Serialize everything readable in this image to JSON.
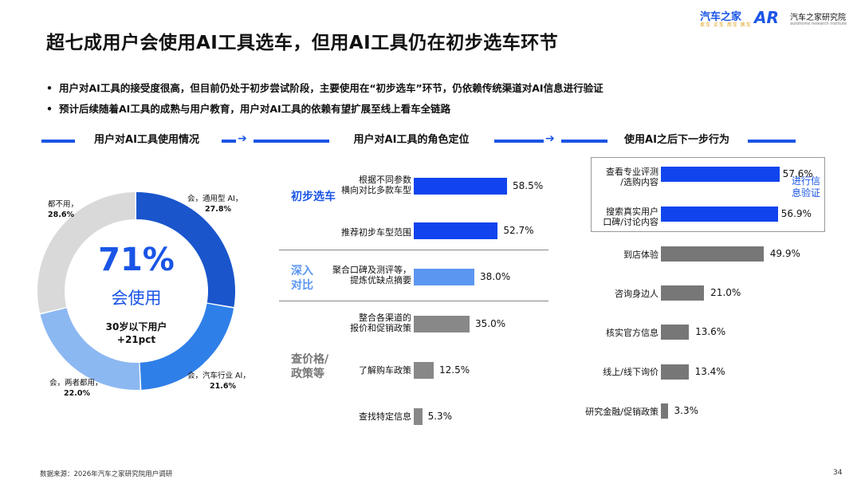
{
  "header": {
    "title": "超七成用户会使用AI工具选车，但用AI工具仍在初步选车环节",
    "logo_main": "汽车之家",
    "logo_main_sub": "卖车 买车 用车 换车",
    "logo_inst_mark": "AR",
    "logo_inst_name": "汽车之家研究院",
    "logo_inst_sub": "autohome research institute"
  },
  "bullets": [
    "用户对AI工具的接受度很高，但目前仍处于初步尝试阶段，主要使用在“初步选车”环节，仍依赖传统渠道对AI信息进行验证",
    "预计后续随着AI工具的成熟与用户教育，用户对AI工具的依赖有望扩展至线上看车全链路"
  ],
  "sections": {
    "left": "用户对AI工具使用情况",
    "middle": "用户对AI工具的角色定位",
    "right": "使用AI之后下一步行为"
  },
  "donut": {
    "big": "71%",
    "med": "会使用",
    "small1": "30岁以下用户",
    "small2": "+21pct",
    "colors": {
      "general": "#1a55cc",
      "industry": "#2f7fe8",
      "both": "#8cb8f2",
      "none": "#d9d9d9"
    },
    "labels": {
      "general_name": "会，通用型 AI，",
      "general_val": "27.8%",
      "industry_name": "会，汽车行业 AI，",
      "industry_val": "21.6%",
      "both_name": "会，两者都用，",
      "both_val": "22.0%",
      "none_name": "都不用，",
      "none_val": "28.6%"
    }
  },
  "chart_data": [
    {
      "type": "pie",
      "title": "用户对AI工具使用情况",
      "categories": [
        "会，通用型 AI",
        "会，汽车行业 AI",
        "会，两者都用",
        "都不用"
      ],
      "values": [
        27.8,
        21.6,
        22.0,
        28.6
      ]
    },
    {
      "type": "bar",
      "title": "用户对AI工具的角色定位",
      "groups": [
        "初步选车",
        "深入对比",
        "查价格/政策等"
      ],
      "categories": [
        "根据不同参数横向对比多款车型",
        "推荐初步车型范围",
        "聚合口碑及测评等，提炼优缺点摘要",
        "整合各渠道的报价和促销政策",
        "了解购车政策",
        "查找特定信息"
      ],
      "values": [
        58.5,
        52.7,
        38.0,
        35.0,
        12.5,
        5.3
      ],
      "display": [
        "58.5%",
        "52.7%",
        "38.0%",
        "35.0%",
        "12.5%",
        "5.3%"
      ]
    },
    {
      "type": "bar",
      "title": "使用AI之后下一步行为",
      "categories": [
        "查看专业评测/选购内容",
        "搜索真实用户口碑/讨论内容",
        "到店体验",
        "咨询身边人",
        "核实官方信息",
        "线上/线下询价",
        "研究金融/促销政策"
      ],
      "values": [
        57.6,
        56.9,
        49.9,
        21.0,
        13.6,
        13.4,
        3.3
      ],
      "display": [
        "57.6%",
        "56.9%",
        "49.9%",
        "21.0%",
        "13.6%",
        "13.4%",
        "3.3%"
      ]
    }
  ],
  "middle": {
    "groups": {
      "g1": "初步选车",
      "g2": "深入对比",
      "g3": "查价格/政策等"
    },
    "labels": {
      "m1a": "根据不同参数",
      "m1b": "横向对比多款车型",
      "m2": "推荐初步车型范围",
      "m3a": "聚合口碑及测评等，",
      "m3b": "提炼优缺点摘要",
      "m4a": "整合各渠道的",
      "m4b": "报价和促销政策",
      "m5": "了解购车政策",
      "m6": "查找特定信息"
    },
    "colors": {
      "strong": "#1144ee",
      "light": "#5b96f0",
      "grey": "#888888"
    }
  },
  "right": {
    "labels": {
      "r1a": "查看专业评测",
      "r1b": "/选购内容",
      "r2a": "搜索真实用户",
      "r2b": "口碑/讨论内容",
      "r3": "到店体验",
      "r4": "咨询身边人",
      "r5": "核实官方信息",
      "r6": "线上/线下询价",
      "r7": "研究金融/促销政策"
    },
    "verify": "进行信息验证"
  },
  "footer": {
    "source": "数据来源：2026年汽车之家研究院用户调研",
    "page": "34"
  }
}
